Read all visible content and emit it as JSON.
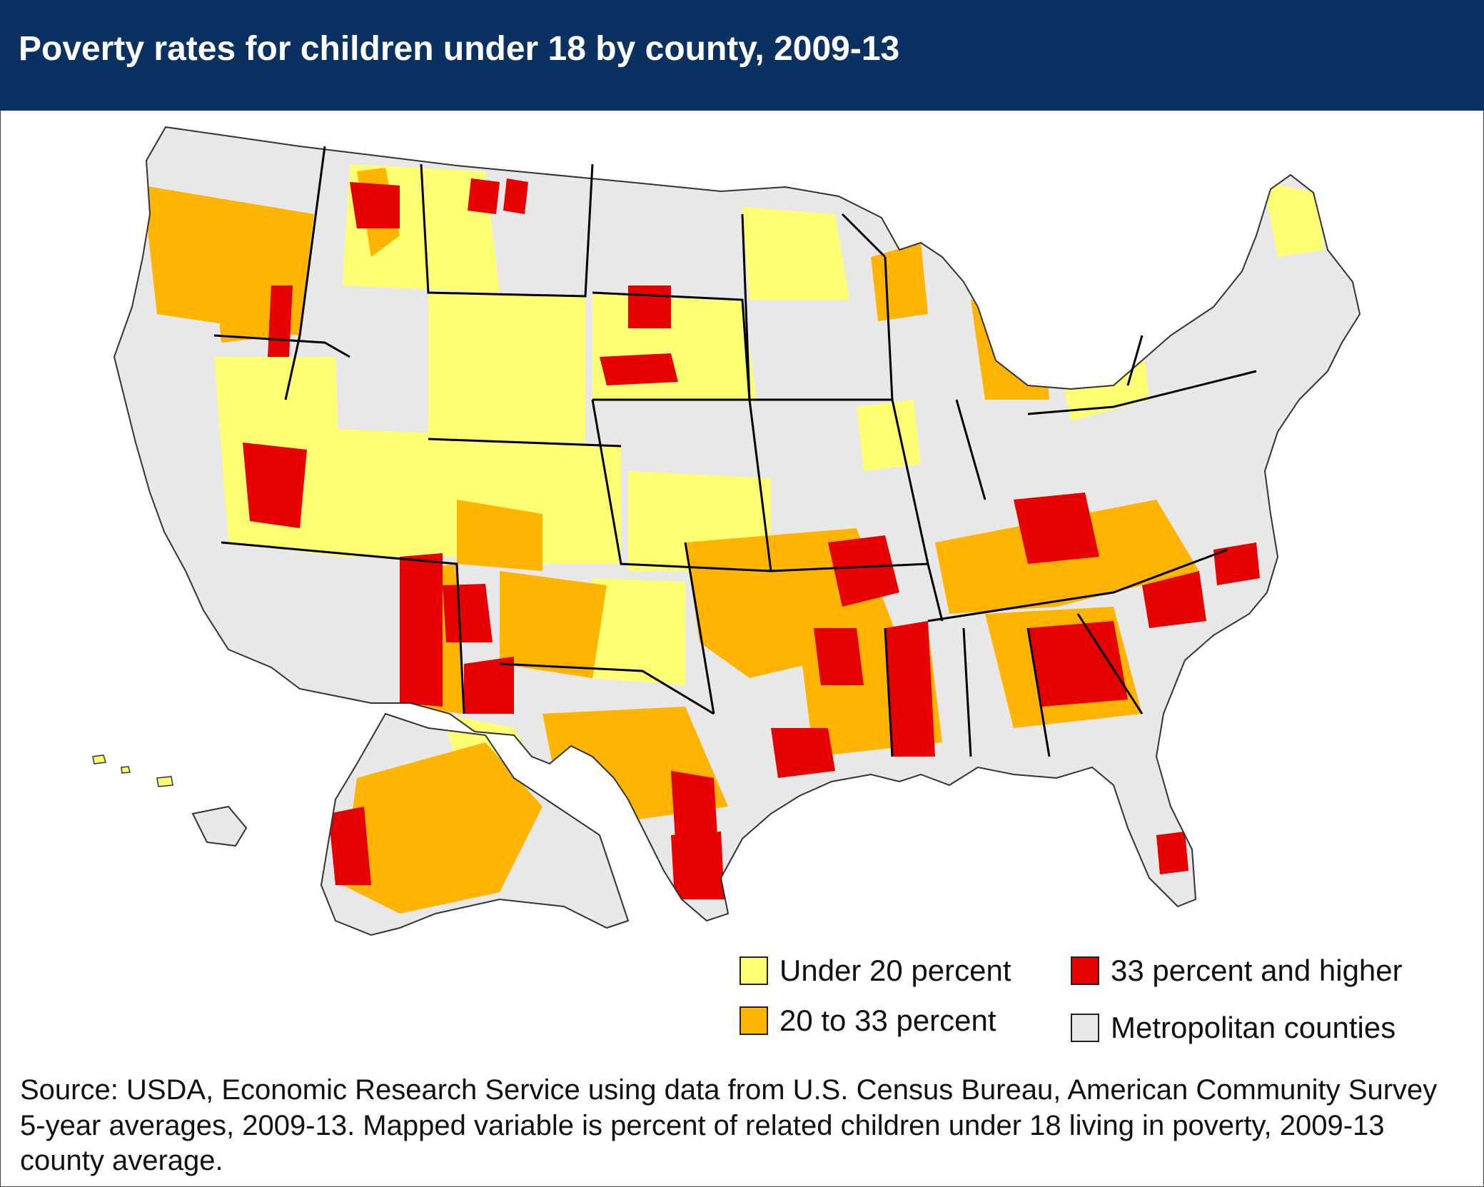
{
  "title": "Poverty rates for children under 18 by county, 2009-13",
  "legend": {
    "items": [
      {
        "label": "Under 20 percent",
        "color": "#ffff73"
      },
      {
        "label": "20 to 33 percent",
        "color": "#ffb400"
      },
      {
        "label": "33 percent and higher",
        "color": "#e60000"
      },
      {
        "label": "Metropolitan counties",
        "color": "#e8e8e8"
      }
    ]
  },
  "map": {
    "background_color": "#ffffff",
    "region_labels": [],
    "insets": [
      "Alaska",
      "Hawaii"
    ]
  },
  "source": "Source: USDA, Economic Research Service using data from U.S. Census Bureau, American Community Survey 5-year averages, 2009-13. Mapped variable is percent of related children under 18 living in poverty, 2009-13 county average."
}
